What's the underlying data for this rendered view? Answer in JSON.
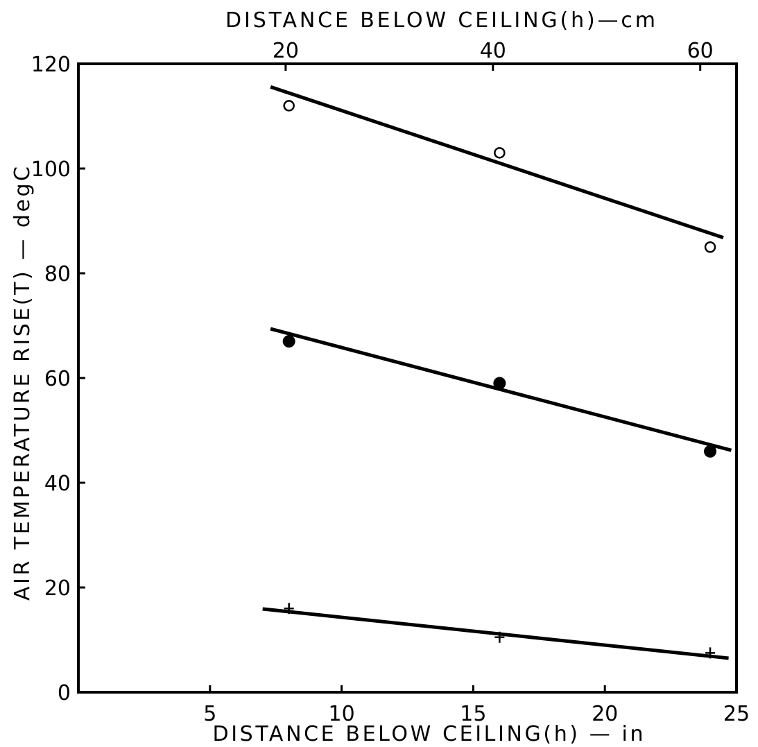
{
  "chart_data": {
    "type": "scatter",
    "x2label": "DISTANCE BELOW CEILING(h)—cm",
    "xlabel": "DISTANCE BELOW CEILING(h) — in",
    "ylabel": "AIR TEMPERATURE RISE(T) — degC",
    "xlim": [
      0,
      25
    ],
    "ylim": [
      0,
      120
    ],
    "xticks": [
      5,
      10,
      15,
      20,
      25
    ],
    "x2ticks": [
      20,
      40,
      60
    ],
    "yticks": [
      0,
      20,
      40,
      60,
      80,
      100,
      120
    ],
    "grid": false,
    "series": [
      {
        "marker": "open-circle",
        "x": [
          8,
          16,
          24
        ],
        "y": [
          112,
          103,
          85
        ],
        "fit_line": {
          "x": [
            7.3,
            24.5
          ],
          "y": [
            115.6,
            86.8
          ]
        }
      },
      {
        "marker": "filled-circle",
        "x": [
          8,
          16,
          24
        ],
        "y": [
          67,
          59,
          46
        ],
        "fit_line": {
          "x": [
            7.3,
            24.8
          ],
          "y": [
            69.4,
            46.2
          ]
        }
      },
      {
        "marker": "cross",
        "x": [
          8,
          16,
          24
        ],
        "y": [
          16,
          10.5,
          7.5
        ],
        "fit_line": {
          "x": [
            7.0,
            24.7
          ],
          "y": [
            15.9,
            6.5
          ]
        }
      }
    ],
    "colors": {
      "ink": "#000000",
      "background": "#ffffff"
    }
  }
}
